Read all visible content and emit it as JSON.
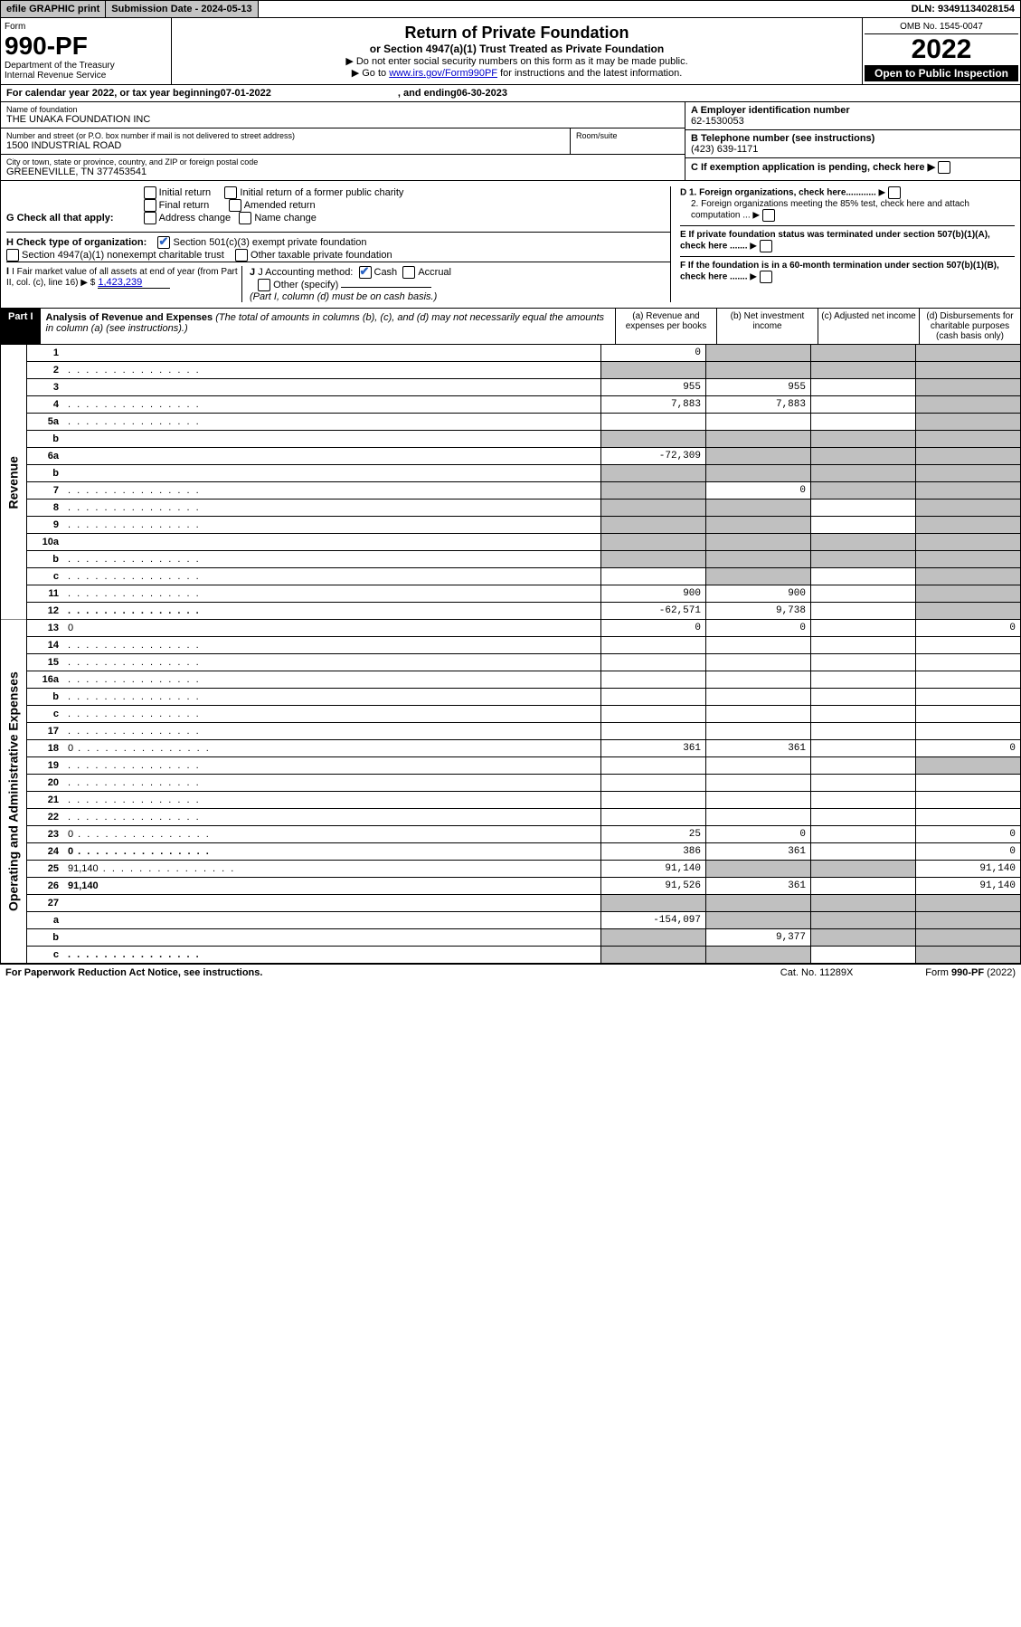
{
  "top": {
    "efile": "efile GRAPHIC print",
    "submission_label": "Submission Date - ",
    "submission_date": "2024-05-13",
    "dln_label": "DLN: ",
    "dln": "93491134028154"
  },
  "header": {
    "form_label": "Form",
    "form_number": "990-PF",
    "dept1": "Department of the Treasury",
    "dept2": "Internal Revenue Service",
    "title": "Return of Private Foundation",
    "subtitle": "or Section 4947(a)(1) Trust Treated as Private Foundation",
    "inst1": "▶ Do not enter social security numbers on this form as it may be made public.",
    "inst2_pre": "▶ Go to ",
    "inst2_link": "www.irs.gov/Form990PF",
    "inst2_post": " for instructions and the latest information.",
    "omb": "OMB No. 1545-0047",
    "year": "2022",
    "open": "Open to Public Inspection"
  },
  "calendar": {
    "text": "For calendar year 2022, or tax year beginning ",
    "begin": "07-01-2022",
    "mid": " , and ending ",
    "end": "06-30-2023"
  },
  "entity": {
    "name_label": "Name of foundation",
    "name": "THE UNAKA FOUNDATION INC",
    "street_label": "Number and street (or P.O. box number if mail is not delivered to street address)",
    "street": "1500 INDUSTRIAL ROAD",
    "room_label": "Room/suite",
    "city_label": "City or town, state or province, country, and ZIP or foreign postal code",
    "city": "GREENEVILLE, TN  377453541",
    "a_label": "A Employer identification number",
    "ein": "62-1530053",
    "b_label": "B Telephone number (see instructions)",
    "phone": "(423) 639-1171",
    "c_label": "C If exemption application is pending, check here"
  },
  "checks": {
    "g_label": "G Check all that apply:",
    "g_opts": [
      "Initial return",
      "Initial return of a former public charity",
      "Final return",
      "Amended return",
      "Address change",
      "Name change"
    ],
    "h_label": "H Check type of organization:",
    "h1": "Section 501(c)(3) exempt private foundation",
    "h2": "Section 4947(a)(1) nonexempt charitable trust",
    "h3": "Other taxable private foundation",
    "i_label": "I Fair market value of all assets at end of year (from Part II, col. (c), line 16) ▶ $",
    "i_value": "1,423,239",
    "j_label": "J Accounting method:",
    "j1": "Cash",
    "j2": "Accrual",
    "j3": "Other (specify)",
    "j_note": "(Part I, column (d) must be on cash basis.)",
    "d1": "D 1. Foreign organizations, check here............",
    "d2": "2. Foreign organizations meeting the 85% test, check here and attach computation ...",
    "e": "E If private foundation status was terminated under section 507(b)(1)(A), check here .......",
    "f": "F If the foundation is in a 60-month termination under section 507(b)(1)(B), check here ......."
  },
  "part1": {
    "label": "Part I",
    "title": "Analysis of Revenue and Expenses",
    "note": "(The total of amounts in columns (b), (c), and (d) may not necessarily equal the amounts in column (a) (see instructions).)",
    "col_a": "(a) Revenue and expenses per books",
    "col_b": "(b) Net investment income",
    "col_c": "(c) Adjusted net income",
    "col_d": "(d) Disbursements for charitable purposes (cash basis only)"
  },
  "sides": {
    "revenue": "Revenue",
    "expenses": "Operating and Administrative Expenses"
  },
  "lines": [
    {
      "n": "1",
      "d": "",
      "a": "0",
      "b": "",
      "c": "",
      "shade_b": true,
      "shade_c": true,
      "shade_d": true
    },
    {
      "n": "2",
      "d": "",
      "a": "",
      "b": "",
      "c": "",
      "shade_a": true,
      "shade_b": true,
      "shade_c": true,
      "shade_d": true,
      "dotted": true
    },
    {
      "n": "3",
      "d": "",
      "a": "955",
      "b": "955",
      "c": "",
      "shade_d": true
    },
    {
      "n": "4",
      "d": "",
      "a": "7,883",
      "b": "7,883",
      "c": "",
      "shade_d": true,
      "dotted": true
    },
    {
      "n": "5a",
      "d": "",
      "a": "",
      "b": "",
      "c": "",
      "shade_d": true,
      "dotted": true
    },
    {
      "n": "b",
      "d": "",
      "a": "",
      "b": "",
      "c": "",
      "shade_a": true,
      "shade_b": true,
      "shade_c": true,
      "shade_d": true
    },
    {
      "n": "6a",
      "d": "",
      "a": "-72,309",
      "b": "",
      "c": "",
      "shade_b": true,
      "shade_c": true,
      "shade_d": true
    },
    {
      "n": "b",
      "d": "",
      "a": "",
      "b": "",
      "c": "",
      "shade_a": true,
      "shade_b": true,
      "shade_c": true,
      "shade_d": true
    },
    {
      "n": "7",
      "d": "",
      "a": "",
      "b": "0",
      "c": "",
      "shade_a": true,
      "shade_c": true,
      "shade_d": true,
      "dotted": true
    },
    {
      "n": "8",
      "d": "",
      "a": "",
      "b": "",
      "c": "",
      "shade_a": true,
      "shade_b": true,
      "shade_d": true,
      "dotted": true
    },
    {
      "n": "9",
      "d": "",
      "a": "",
      "b": "",
      "c": "",
      "shade_a": true,
      "shade_b": true,
      "shade_d": true,
      "dotted": true
    },
    {
      "n": "10a",
      "d": "",
      "a": "",
      "b": "",
      "c": "",
      "shade_a": true,
      "shade_b": true,
      "shade_c": true,
      "shade_d": true
    },
    {
      "n": "b",
      "d": "",
      "a": "",
      "b": "",
      "c": "",
      "shade_a": true,
      "shade_b": true,
      "shade_c": true,
      "shade_d": true,
      "dotted": true
    },
    {
      "n": "c",
      "d": "",
      "a": "",
      "b": "",
      "c": "",
      "shade_b": true,
      "shade_d": true,
      "dotted": true
    },
    {
      "n": "11",
      "d": "",
      "a": "900",
      "b": "900",
      "c": "",
      "shade_d": true,
      "dotted": true
    },
    {
      "n": "12",
      "d": "",
      "a": "-62,571",
      "b": "9,738",
      "c": "",
      "bold": true,
      "shade_d": true,
      "dotted": true
    },
    {
      "n": "13",
      "d": "0",
      "a": "0",
      "b": "0",
      "c": ""
    },
    {
      "n": "14",
      "d": "",
      "a": "",
      "b": "",
      "c": "",
      "dotted": true
    },
    {
      "n": "15",
      "d": "",
      "a": "",
      "b": "",
      "c": "",
      "dotted": true
    },
    {
      "n": "16a",
      "d": "",
      "a": "",
      "b": "",
      "c": "",
      "dotted": true
    },
    {
      "n": "b",
      "d": "",
      "a": "",
      "b": "",
      "c": "",
      "dotted": true
    },
    {
      "n": "c",
      "d": "",
      "a": "",
      "b": "",
      "c": "",
      "dotted": true
    },
    {
      "n": "17",
      "d": "",
      "a": "",
      "b": "",
      "c": "",
      "dotted": true
    },
    {
      "n": "18",
      "d": "0",
      "a": "361",
      "b": "361",
      "c": "",
      "dotted": true
    },
    {
      "n": "19",
      "d": "",
      "a": "",
      "b": "",
      "c": "",
      "shade_d": true,
      "dotted": true
    },
    {
      "n": "20",
      "d": "",
      "a": "",
      "b": "",
      "c": "",
      "dotted": true
    },
    {
      "n": "21",
      "d": "",
      "a": "",
      "b": "",
      "c": "",
      "dotted": true
    },
    {
      "n": "22",
      "d": "",
      "a": "",
      "b": "",
      "c": "",
      "dotted": true
    },
    {
      "n": "23",
      "d": "0",
      "a": "25",
      "b": "0",
      "c": "",
      "dotted": true
    },
    {
      "n": "24",
      "d": "0",
      "a": "386",
      "b": "361",
      "c": "",
      "bold": true,
      "dotted": true
    },
    {
      "n": "25",
      "d": "91,140",
      "a": "91,140",
      "b": "",
      "c": "",
      "shade_b": true,
      "shade_c": true,
      "dotted": true
    },
    {
      "n": "26",
      "d": "91,140",
      "a": "91,526",
      "b": "361",
      "c": "",
      "bold": true
    },
    {
      "n": "27",
      "d": "",
      "a": "",
      "b": "",
      "c": "",
      "shade_a": true,
      "shade_b": true,
      "shade_c": true,
      "shade_d": true
    },
    {
      "n": "a",
      "d": "",
      "a": "-154,097",
      "b": "",
      "c": "",
      "bold": true,
      "shade_b": true,
      "shade_c": true,
      "shade_d": true
    },
    {
      "n": "b",
      "d": "",
      "a": "",
      "b": "9,377",
      "c": "",
      "bold": true,
      "shade_a": true,
      "shade_c": true,
      "shade_d": true
    },
    {
      "n": "c",
      "d": "",
      "a": "",
      "b": "",
      "c": "",
      "bold": true,
      "shade_a": true,
      "shade_b": true,
      "shade_d": true,
      "dotted": true
    }
  ],
  "footer": {
    "left": "For Paperwork Reduction Act Notice, see instructions.",
    "mid": "Cat. No. 11289X",
    "right": "Form 990-PF (2022)"
  }
}
